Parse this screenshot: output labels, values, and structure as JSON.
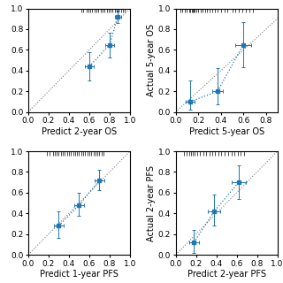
{
  "chart_data": [
    {
      "type": "scatter",
      "xlabel": "Predict 2-year OS",
      "xlim": [
        0.0,
        1.0
      ],
      "ylim": [
        0.0,
        1.0
      ],
      "xticks": [
        0.0,
        0.2,
        0.4,
        0.6,
        0.8,
        1.0
      ],
      "yticks": [
        0.0,
        0.2,
        0.4,
        0.6,
        0.8,
        1.0
      ],
      "x": [
        0.6,
        0.8,
        0.88
      ],
      "values": [
        0.44,
        0.65,
        0.92
      ],
      "xerr_low": [
        0.04,
        0.04,
        0.03
      ],
      "xerr_high": [
        0.04,
        0.04,
        0.03
      ],
      "yerr_low": [
        0.14,
        0.12,
        0.06
      ],
      "yerr_high": [
        0.14,
        0.12,
        0.06
      ],
      "rug_x": [
        0.52,
        0.54,
        0.57,
        0.59,
        0.61,
        0.63,
        0.65,
        0.67,
        0.69,
        0.71,
        0.73,
        0.75,
        0.77,
        0.79,
        0.81,
        0.83,
        0.85,
        0.87,
        0.89,
        0.91,
        0.93,
        0.95
      ],
      "diagonal": {
        "x": [
          0.0,
          1.0
        ],
        "y": [
          0.0,
          1.0
        ]
      },
      "marker": "square",
      "line_style": "dotted"
    },
    {
      "type": "scatter",
      "xlabel": "Predict 5-year OS",
      "ylabel": "Actual 5-year OS",
      "xlim": [
        0.0,
        0.9
      ],
      "ylim": [
        0.0,
        1.0
      ],
      "xticks": [
        0.0,
        0.2,
        0.4,
        0.6,
        0.8
      ],
      "yticks": [
        0.0,
        0.2,
        0.4,
        0.6,
        0.8,
        1.0
      ],
      "x": [
        0.13,
        0.37,
        0.6
      ],
      "values": [
        0.1,
        0.2,
        0.65
      ],
      "xerr_low": [
        0.04,
        0.05,
        0.07
      ],
      "xerr_high": [
        0.04,
        0.05,
        0.07
      ],
      "yerr_low": [
        0.08,
        0.13,
        0.22
      ],
      "yerr_high": [
        0.2,
        0.22,
        0.22
      ],
      "rug_x": [
        0.04,
        0.06,
        0.08,
        0.1,
        0.12,
        0.13,
        0.14,
        0.15,
        0.16,
        0.17,
        0.18,
        0.2,
        0.22,
        0.24,
        0.26,
        0.28,
        0.3,
        0.32,
        0.35,
        0.37,
        0.4,
        0.43,
        0.46,
        0.5,
        0.53,
        0.56,
        0.59,
        0.62,
        0.65,
        0.68
      ],
      "diagonal": {
        "x": [
          0.0,
          1.0
        ],
        "y": [
          0.0,
          1.0
        ]
      },
      "marker": "square",
      "line_style": "dotted"
    },
    {
      "type": "scatter",
      "xlabel": "Predict 1-year PFS",
      "xlim": [
        0.0,
        1.0
      ],
      "ylim": [
        0.0,
        1.0
      ],
      "xticks": [
        0.0,
        0.2,
        0.4,
        0.6,
        0.8,
        1.0
      ],
      "yticks": [
        0.0,
        0.2,
        0.4,
        0.6,
        0.8,
        1.0
      ],
      "x": [
        0.3,
        0.5,
        0.7
      ],
      "values": [
        0.28,
        0.48,
        0.72
      ],
      "xerr_low": [
        0.05,
        0.05,
        0.05
      ],
      "xerr_high": [
        0.05,
        0.05,
        0.05
      ],
      "yerr_low": [
        0.12,
        0.1,
        0.1
      ],
      "yerr_high": [
        0.14,
        0.12,
        0.1
      ],
      "rug_x": [
        0.18,
        0.21,
        0.24,
        0.26,
        0.28,
        0.3,
        0.32,
        0.34,
        0.36,
        0.38,
        0.4,
        0.42,
        0.44,
        0.46,
        0.48,
        0.5,
        0.52,
        0.54,
        0.56,
        0.58,
        0.6,
        0.62,
        0.64,
        0.66,
        0.68,
        0.7,
        0.72,
        0.74
      ],
      "diagonal": {
        "x": [
          0.0,
          1.0
        ],
        "y": [
          0.0,
          1.0
        ]
      },
      "marker": "square",
      "line_style": "dotted"
    },
    {
      "type": "scatter",
      "xlabel": "Predict 2-year PFS",
      "ylabel": "Actual 2-year PFS",
      "xlim": [
        0.0,
        1.0
      ],
      "ylim": [
        0.0,
        1.0
      ],
      "xticks": [
        0.0,
        0.2,
        0.4,
        0.6,
        0.8,
        1.0
      ],
      "yticks": [
        0.0,
        0.2,
        0.4,
        0.6,
        0.8,
        1.0
      ],
      "x": [
        0.18,
        0.38,
        0.62
      ],
      "values": [
        0.12,
        0.42,
        0.7
      ],
      "xerr_low": [
        0.05,
        0.06,
        0.07
      ],
      "xerr_high": [
        0.05,
        0.06,
        0.07
      ],
      "yerr_low": [
        0.1,
        0.14,
        0.16
      ],
      "yerr_high": [
        0.12,
        0.16,
        0.16
      ],
      "rug_x": [
        0.08,
        0.11,
        0.13,
        0.15,
        0.17,
        0.19,
        0.21,
        0.24,
        0.27,
        0.3,
        0.33,
        0.36,
        0.39,
        0.42,
        0.45,
        0.48,
        0.52,
        0.55,
        0.58,
        0.61,
        0.64,
        0.67
      ],
      "diagonal": {
        "x": [
          0.0,
          1.0
        ],
        "y": [
          0.0,
          1.0
        ]
      },
      "marker": "square",
      "line_style": "dotted"
    }
  ]
}
